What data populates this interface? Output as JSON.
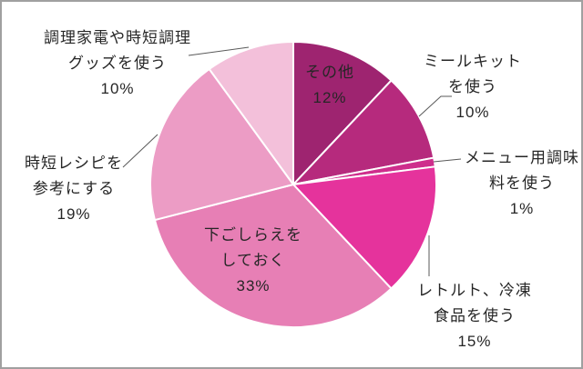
{
  "chart_data": {
    "type": "pie",
    "title": "",
    "unit": "%",
    "direction": "clockwise",
    "start_angle_deg": 0,
    "legend": "none",
    "categories": [
      "その他",
      "ミールキットを使う",
      "メニュー用調味料を使う",
      "レトルト、冷凍食品を使う",
      "下ごしらえをしておく",
      "時短レシピを参考にする",
      "調理家電や時短調理グッズを使う"
    ],
    "values": [
      12,
      10,
      1,
      15,
      33,
      19,
      10
    ],
    "slices": [
      {
        "name": "その他",
        "value": 12,
        "pct_label": "12%",
        "label_lines": [
          "その他",
          "12%"
        ],
        "color": "#9E2470",
        "label_inside": true
      },
      {
        "name": "ミールキットを使う",
        "value": 10,
        "pct_label": "10%",
        "label_lines": [
          "ミールキット",
          "を使う",
          "10%"
        ],
        "color": "#B62A7D",
        "label_inside": false
      },
      {
        "name": "メニュー用調味料を使う",
        "value": 1,
        "pct_label": "1%",
        "label_lines": [
          "メニュー用調味",
          "料を使う",
          "1%"
        ],
        "color": "#CE2E8C",
        "label_inside": false
      },
      {
        "name": "レトルト、冷凍食品を使う",
        "value": 15,
        "pct_label": "15%",
        "label_lines": [
          "レトルト、冷凍",
          "食品を使う",
          "15%"
        ],
        "color": "#E5339C",
        "label_inside": false
      },
      {
        "name": "下ごしらえをしておく",
        "value": 33,
        "pct_label": "33%",
        "label_lines": [
          "下ごしらえを",
          "しておく",
          "33%"
        ],
        "color": "#E77FB5",
        "label_inside": true
      },
      {
        "name": "時短レシピを参考にする",
        "value": 19,
        "pct_label": "19%",
        "label_lines": [
          "時短レシピを",
          "参考にする",
          "19%"
        ],
        "color": "#EC9CC5",
        "label_inside": false
      },
      {
        "name": "調理家電や時短調理グッズを使う",
        "value": 10,
        "pct_label": "10%",
        "label_lines": [
          "調理家電や時短調理",
          "グッズを使う",
          "10%"
        ],
        "color": "#F3C0DA",
        "label_inside": false
      }
    ],
    "label_text_color": "#262626",
    "leader_line_color": "#595959",
    "slice_border_color": "#FFFFFF",
    "background": "#FFFFFF",
    "frame_border_color": "#A0A0A0"
  }
}
